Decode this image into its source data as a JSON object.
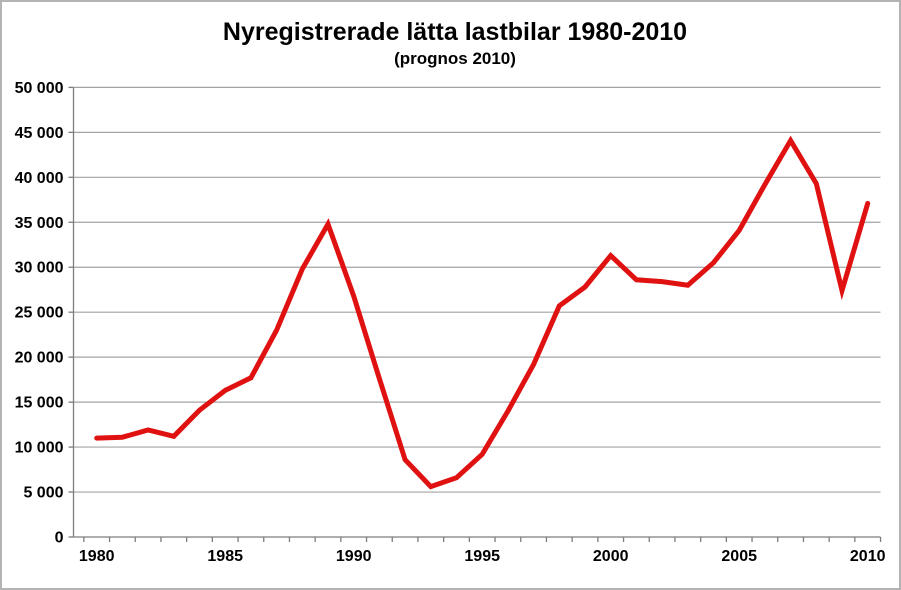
{
  "window": {
    "background_color": "#ffffff",
    "border_color": "#b3b3b3"
  },
  "chart_data": {
    "type": "line",
    "title": "Nyregistrerade lätta lastbilar 1980-2010",
    "subtitle": "(prognos 2010)",
    "x": [
      1980,
      1981,
      1982,
      1983,
      1984,
      1985,
      1986,
      1987,
      1988,
      1989,
      1990,
      1991,
      1992,
      1993,
      1994,
      1995,
      1996,
      1997,
      1998,
      1999,
      2000,
      2001,
      2002,
      2003,
      2004,
      2005,
      2006,
      2007,
      2008,
      2009,
      2010
    ],
    "values": [
      11000,
      11100,
      11900,
      11200,
      14100,
      16300,
      17700,
      23000,
      29800,
      34800,
      26800,
      17600,
      8600,
      5600,
      6600,
      9200,
      14000,
      19200,
      25700,
      27800,
      31300,
      28600,
      28400,
      28000,
      30500,
      34100,
      39200,
      44100,
      39300,
      27400,
      37100
    ],
    "xlabel": "",
    "ylabel": "",
    "ylim": [
      0,
      50000
    ],
    "ytick_step": 5000,
    "ytick_labels": [
      "0",
      "5 000",
      "10 000",
      "15 000",
      "20 000",
      "25 000",
      "30 000",
      "35 000",
      "40 000",
      "45 000",
      "50 000"
    ],
    "xtick_labels": [
      "1980",
      "1985",
      "1990",
      "1995",
      "2000",
      "2005",
      "2010"
    ],
    "xtick_label_interval": 5,
    "grid": "horizontal",
    "legend": "none",
    "line_color": "#e01111",
    "grid_color": "#a3a3a3",
    "axis_color": "#7d7d7d",
    "text_color": "#000000"
  }
}
